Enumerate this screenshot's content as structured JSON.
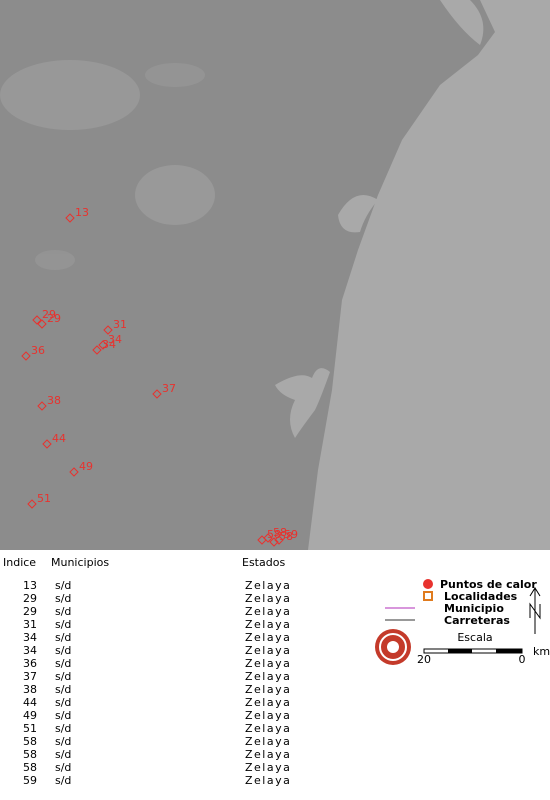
{
  "map": {
    "markers": [
      "13",
      "29",
      "29",
      "31",
      "34",
      "34",
      "36",
      "37",
      "38",
      "44",
      "49",
      "51",
      "58",
      "58",
      "58",
      "59"
    ]
  },
  "table": {
    "header": [
      "Indice",
      "Municipios",
      "Estados"
    ],
    "rows": [
      [
        "13",
        "s/d",
        "Zelaya"
      ],
      [
        "29",
        "s/d",
        "Zelaya"
      ],
      [
        "29",
        "s/d",
        "Zelaya"
      ],
      [
        "31",
        "s/d",
        "Zelaya"
      ],
      [
        "34",
        "s/d",
        "Zelaya"
      ],
      [
        "34",
        "s/d",
        "Zelaya"
      ],
      [
        "36",
        "s/d",
        "Zelaya"
      ],
      [
        "37",
        "s/d",
        "Zelaya"
      ],
      [
        "38",
        "s/d",
        "Zelaya"
      ],
      [
        "44",
        "s/d",
        "Zelaya"
      ],
      [
        "49",
        "s/d",
        "Zelaya"
      ],
      [
        "51",
        "s/d",
        "Zelaya"
      ],
      [
        "58",
        "s/d",
        "Zelaya"
      ],
      [
        "58",
        "s/d",
        "Zelaya"
      ],
      [
        "58",
        "s/d",
        "Zelaya"
      ],
      [
        "59",
        "s/d",
        "Zelaya"
      ]
    ]
  },
  "legend": {
    "items": [
      "Puntos de calor",
      "Localidades",
      "Municipio",
      "Carreteras"
    ],
    "scale_title": "Escala",
    "scale_left": "20",
    "scale_right": "0",
    "scale_unit": "km"
  }
}
